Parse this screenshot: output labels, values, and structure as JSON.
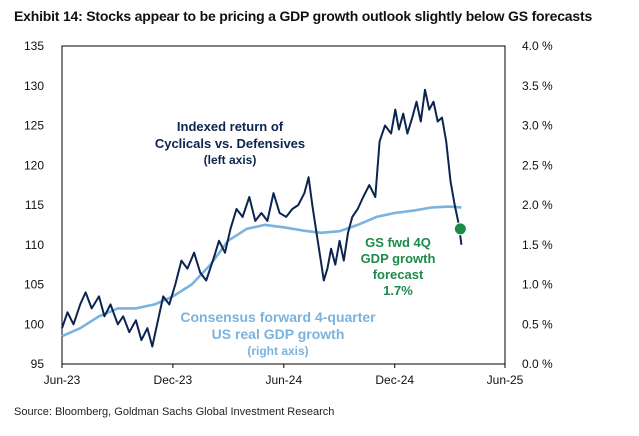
{
  "title": "Exhibit 14: Stocks appear to be pricing a GDP growth outlook slightly below GS forecasts",
  "source": "Source: Bloomberg, Goldman Sachs Global Investment Research",
  "annotations": {
    "cyclicals": [
      "Indexed return of",
      "Cyclicals vs. Defensives",
      "(left axis)"
    ],
    "consensus": [
      "Consensus forward 4-quarter",
      "US real GDP growth",
      "(right axis)"
    ],
    "gs": [
      "GS fwd 4Q",
      "GDP growth",
      "forecast",
      "1.7%"
    ]
  },
  "colors": {
    "cyclicals": "#0b2550",
    "consensus": "#7ab3de",
    "gs_marker": "#1e8a4a"
  },
  "chart_data": {
    "type": "line",
    "x_ticks": [
      "Jun-23",
      "Dec-23",
      "Jun-24",
      "Dec-24",
      "Jun-25"
    ],
    "ylim_left": [
      95,
      135
    ],
    "yticks_left": [
      "135",
      "130",
      "125",
      "120",
      "115",
      "110",
      "105",
      "100",
      "95"
    ],
    "ylim_right": [
      0.0,
      4.0
    ],
    "yticks_right": [
      "4.0 %",
      "3.5 %",
      "3.0 %",
      "2.5 %",
      "2.0 %",
      "1.5 %",
      "1.0 %",
      "0.5 %",
      "0.0 %"
    ],
    "series": [
      {
        "axis": "left",
        "points": [
          [
            "2023-06-01",
            99.5
          ],
          [
            "2023-06-10",
            101.5
          ],
          [
            "2023-06-20",
            100.0
          ],
          [
            "2023-07-01",
            102.5
          ],
          [
            "2023-07-10",
            104.0
          ],
          [
            "2023-07-20",
            102.0
          ],
          [
            "2023-08-01",
            103.5
          ],
          [
            "2023-08-10",
            101.0
          ],
          [
            "2023-08-20",
            102.5
          ],
          [
            "2023-09-01",
            100.0
          ],
          [
            "2023-09-10",
            101.0
          ],
          [
            "2023-09-20",
            99.0
          ],
          [
            "2023-10-01",
            100.5
          ],
          [
            "2023-10-10",
            98.0
          ],
          [
            "2023-10-20",
            99.5
          ],
          [
            "2023-10-28",
            97.2
          ],
          [
            "2023-11-05",
            100.0
          ],
          [
            "2023-11-15",
            103.5
          ],
          [
            "2023-11-25",
            102.5
          ],
          [
            "2023-12-05",
            105.0
          ],
          [
            "2023-12-15",
            108.0
          ],
          [
            "2023-12-25",
            107.0
          ],
          [
            "2024-01-05",
            109.0
          ],
          [
            "2024-01-15",
            106.5
          ],
          [
            "2024-01-25",
            105.5
          ],
          [
            "2024-02-05",
            108.0
          ],
          [
            "2024-02-15",
            110.5
          ],
          [
            "2024-02-25",
            109.0
          ],
          [
            "2024-03-05",
            112.0
          ],
          [
            "2024-03-15",
            114.5
          ],
          [
            "2024-03-25",
            113.5
          ],
          [
            "2024-04-05",
            116.0
          ],
          [
            "2024-04-15",
            113.0
          ],
          [
            "2024-04-25",
            114.0
          ],
          [
            "2024-05-05",
            113.0
          ],
          [
            "2024-05-15",
            116.5
          ],
          [
            "2024-05-25",
            114.0
          ],
          [
            "2024-06-05",
            113.5
          ],
          [
            "2024-06-15",
            114.5
          ],
          [
            "2024-06-25",
            115.0
          ],
          [
            "2024-07-05",
            116.5
          ],
          [
            "2024-07-12",
            118.5
          ],
          [
            "2024-07-18",
            115.0
          ],
          [
            "2024-07-25",
            111.5
          ],
          [
            "2024-08-01",
            108.0
          ],
          [
            "2024-08-06",
            105.5
          ],
          [
            "2024-08-12",
            107.0
          ],
          [
            "2024-08-18",
            109.5
          ],
          [
            "2024-08-25",
            107.5
          ],
          [
            "2024-09-01",
            110.5
          ],
          [
            "2024-09-08",
            108.0
          ],
          [
            "2024-09-15",
            111.5
          ],
          [
            "2024-09-22",
            113.5
          ],
          [
            "2024-10-01",
            114.5
          ],
          [
            "2024-10-10",
            116.0
          ],
          [
            "2024-10-20",
            117.5
          ],
          [
            "2024-10-30",
            116.0
          ],
          [
            "2024-11-06",
            123.0
          ],
          [
            "2024-11-15",
            125.0
          ],
          [
            "2024-11-25",
            124.0
          ],
          [
            "2024-12-02",
            127.0
          ],
          [
            "2024-12-08",
            124.5
          ],
          [
            "2024-12-15",
            126.5
          ],
          [
            "2024-12-22",
            124.0
          ],
          [
            "2024-12-30",
            126.0
          ],
          [
            "2025-01-06",
            128.0
          ],
          [
            "2025-01-13",
            125.5
          ],
          [
            "2025-01-20",
            129.5
          ],
          [
            "2025-01-27",
            127.0
          ],
          [
            "2025-02-03",
            128.0
          ],
          [
            "2025-02-10",
            125.5
          ],
          [
            "2025-02-17",
            126.0
          ],
          [
            "2025-02-24",
            123.0
          ],
          [
            "2025-03-03",
            118.0
          ],
          [
            "2025-03-10",
            115.0
          ],
          [
            "2025-03-17",
            112.5
          ],
          [
            "2025-03-21",
            110.0
          ]
        ]
      },
      {
        "axis": "right",
        "points": [
          [
            "2023-06-01",
            0.35
          ],
          [
            "2023-07-01",
            0.45
          ],
          [
            "2023-08-01",
            0.6
          ],
          [
            "2023-09-01",
            0.7
          ],
          [
            "2023-10-01",
            0.7
          ],
          [
            "2023-11-01",
            0.75
          ],
          [
            "2023-12-01",
            0.85
          ],
          [
            "2024-01-01",
            1.0
          ],
          [
            "2024-02-01",
            1.25
          ],
          [
            "2024-03-01",
            1.55
          ],
          [
            "2024-04-01",
            1.7
          ],
          [
            "2024-05-01",
            1.75
          ],
          [
            "2024-06-01",
            1.72
          ],
          [
            "2024-07-01",
            1.68
          ],
          [
            "2024-08-01",
            1.65
          ],
          [
            "2024-09-01",
            1.67
          ],
          [
            "2024-10-01",
            1.75
          ],
          [
            "2024-11-01",
            1.85
          ],
          [
            "2024-12-01",
            1.9
          ],
          [
            "2025-01-01",
            1.93
          ],
          [
            "2025-02-01",
            1.97
          ],
          [
            "2025-03-01",
            1.98
          ],
          [
            "2025-03-21",
            1.97
          ]
        ]
      }
    ],
    "gs_forecast_point": {
      "x": "2025-03-21",
      "y": 1.7,
      "axis": "right"
    }
  }
}
